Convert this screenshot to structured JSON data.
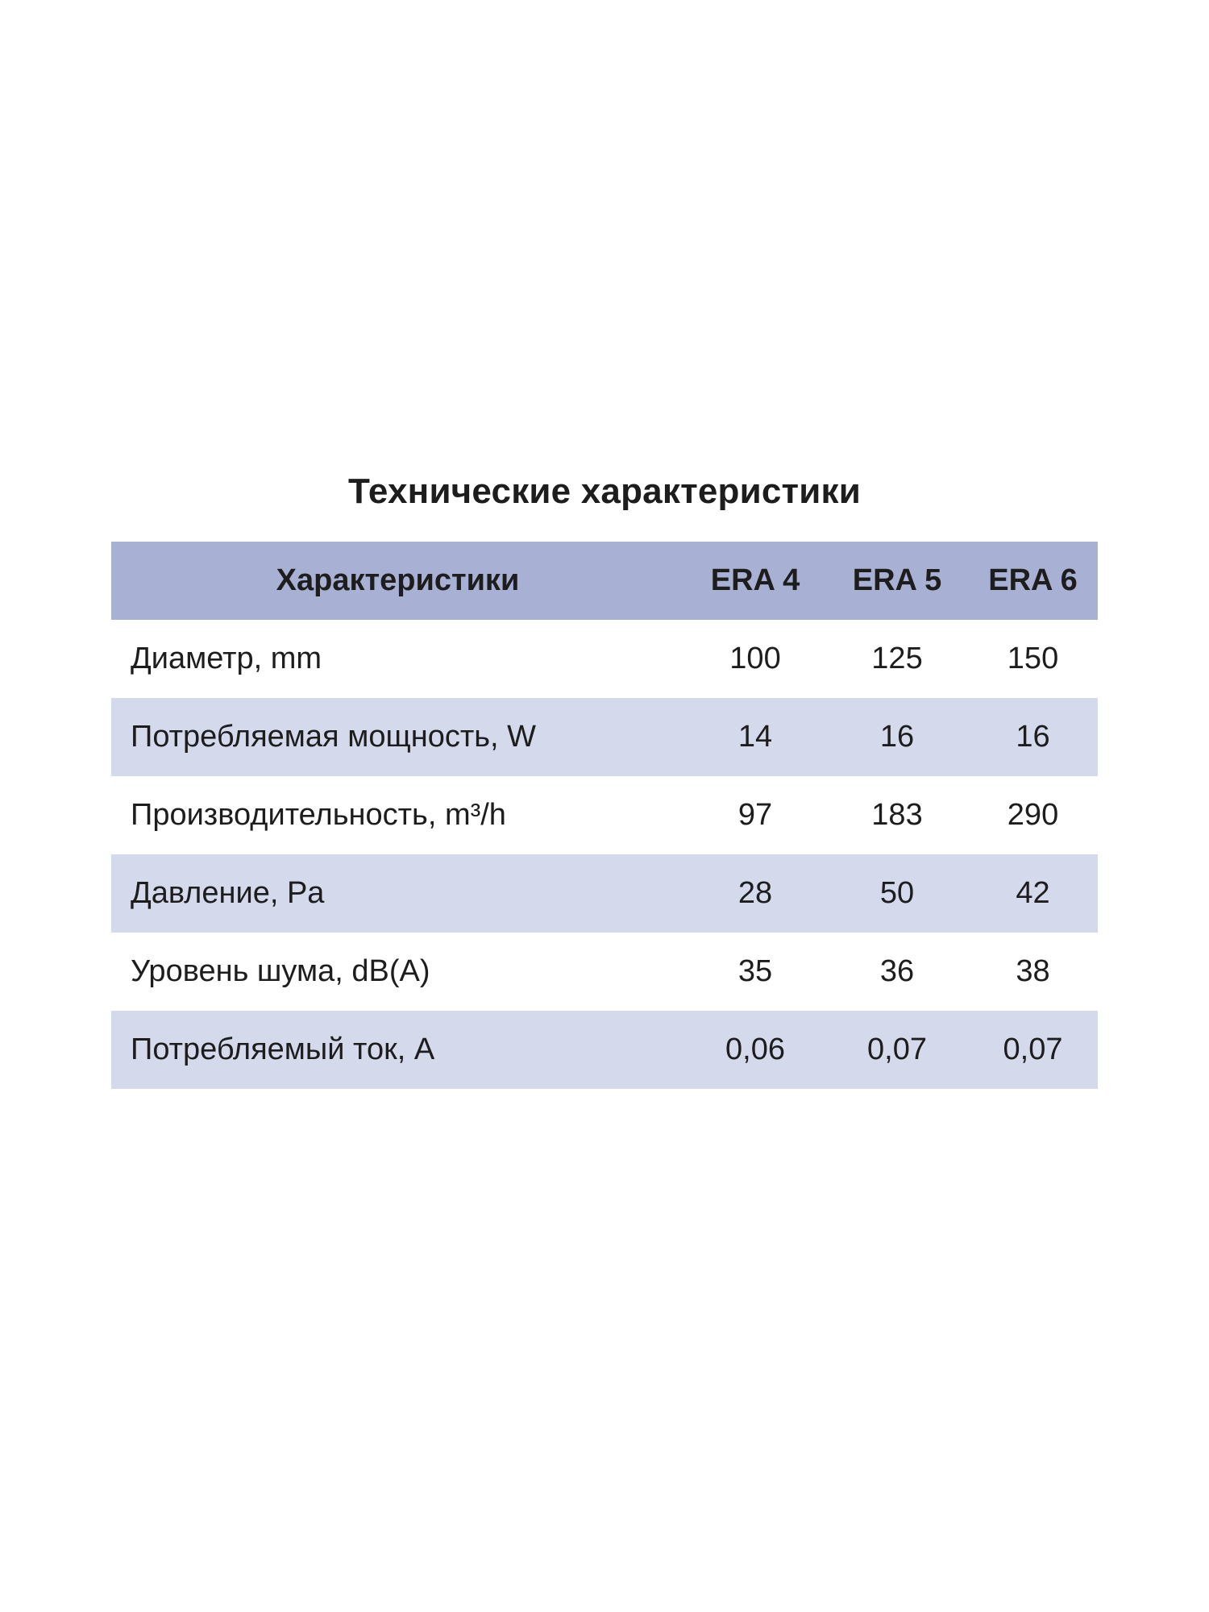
{
  "theme": {
    "header_bg": "#a8b0d3",
    "row_alt_bg": "#d4d9ec",
    "text_color": "#1d1d1d",
    "page_bg": "#ffffff"
  },
  "page": {
    "title": "Технические характеристики"
  },
  "table": {
    "header": {
      "feature_label": "Характеристики",
      "columns": [
        "ERA 4",
        "ERA 5",
        "ERA 6"
      ]
    },
    "rows": [
      {
        "label": "Диаметр, mm",
        "values": [
          "100",
          "125",
          "150"
        ]
      },
      {
        "label": "Потребляемая мощность, W",
        "values": [
          "14",
          "16",
          "16"
        ]
      },
      {
        "label": "Производительность, m³/h",
        "values": [
          "97",
          "183",
          "290"
        ]
      },
      {
        "label": "Давление, Pa",
        "values": [
          "28",
          "50",
          "42"
        ]
      },
      {
        "label": "Уровень шума, dB(A)",
        "values": [
          "35",
          "36",
          "38"
        ]
      },
      {
        "label": "Потребляемый ток, A",
        "values": [
          "0,06",
          "0,07",
          "0,07"
        ]
      }
    ]
  }
}
